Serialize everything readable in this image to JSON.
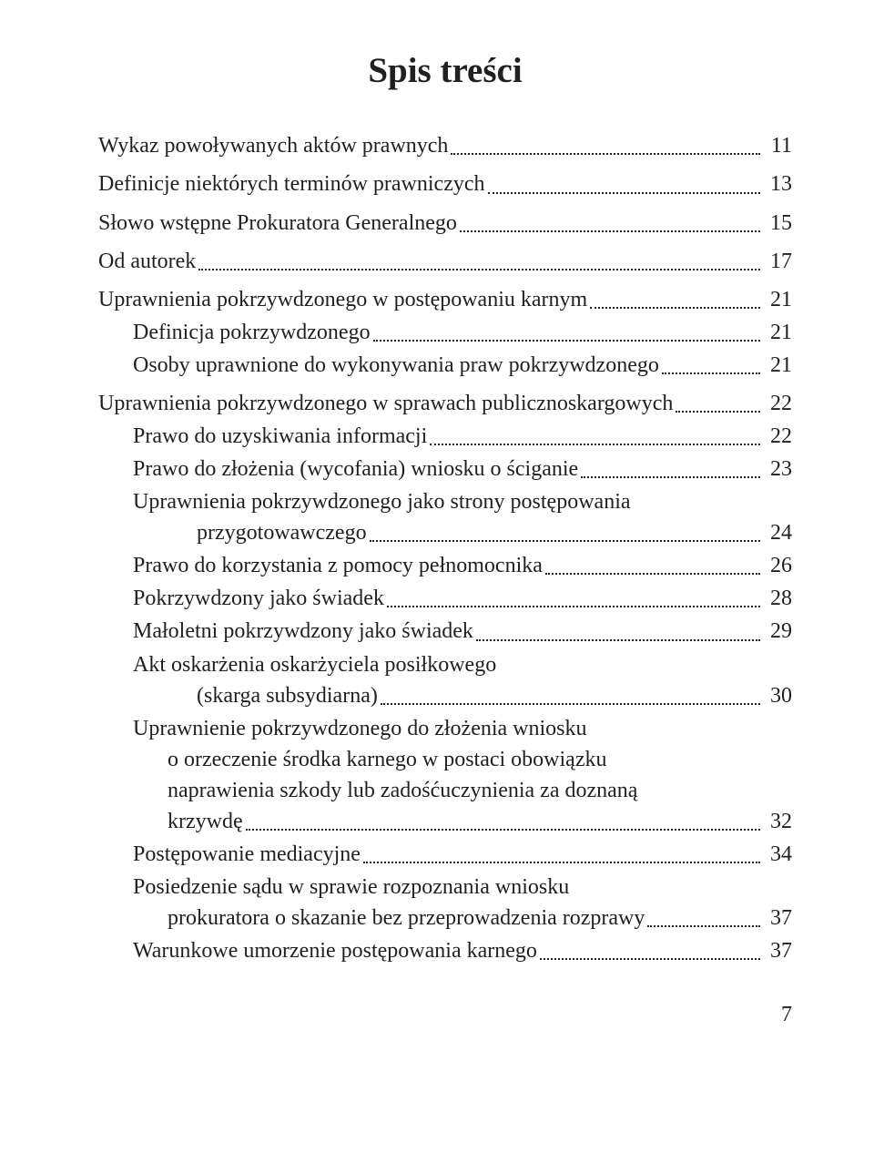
{
  "title": "Spis treści",
  "page_number": "7",
  "colors": {
    "text": "#221f1f",
    "background": "#ffffff",
    "dots": "#221f1f"
  },
  "typography": {
    "body_family": "Palatino Linotype",
    "title_family": "Georgia",
    "body_size_pt": 18,
    "title_size_pt": 29,
    "line_height": 1.42
  },
  "entries": [
    {
      "label": "Wykaz powoływanych aktów prawnych",
      "page": "11",
      "level": 0
    },
    {
      "label": "Definicje niektórych terminów prawniczych",
      "page": "13",
      "level": 0
    },
    {
      "label": "Słowo wstępne Prokuratora Generalnego",
      "page": "15",
      "level": 0
    },
    {
      "label": "Od autorek",
      "page": "17",
      "level": 0
    },
    {
      "label": "Uprawnienia pokrzywdzonego w postępowaniu karnym",
      "page": "21",
      "level": 0
    },
    {
      "label": "Definicja pokrzywdzonego",
      "page": "21",
      "level": 1
    },
    {
      "label": "Osoby uprawnione do wykonywania praw pokrzywdzonego",
      "page": "21",
      "level": 1
    },
    {
      "label": "Uprawnienia pokrzywdzonego w sprawach publicznoskargowych",
      "page": "22",
      "level": 0
    },
    {
      "label": "Prawo do uzyskiwania informacji",
      "page": "22",
      "level": 1
    },
    {
      "label": "Prawo do złożenia (wycofania) wniosku o ściganie",
      "page": "23",
      "level": 1
    },
    {
      "label_line1": "Uprawnienia pokrzywdzonego jako strony postępowania",
      "label_line2": "przygotowawczego",
      "page": "24",
      "level": 1,
      "multi": true,
      "cont_class": "cont1"
    },
    {
      "label": "Prawo do korzystania z pomocy pełnomocnika",
      "page": "26",
      "level": 1
    },
    {
      "label": "Pokrzywdzony jako świadek",
      "page": "28",
      "level": 1
    },
    {
      "label": "Małoletni pokrzywdzony jako świadek",
      "page": "29",
      "level": 1
    },
    {
      "label_line1": "Akt oskarżenia oskarżyciela posiłkowego",
      "label_line2": "(skarga subsydiarna)",
      "page": "30",
      "level": 1,
      "multi": true,
      "cont_class": "cont1"
    },
    {
      "label_line1": "Uprawnienie pokrzywdzonego do złożenia wniosku",
      "label_line2": "o orzeczenie środka karnego w postaci obowiązku",
      "label_line3": "naprawienia szkody lub zadośćuczynienia za doznaną",
      "label_line4": "krzywdę",
      "page": "32",
      "level": 1,
      "multi": true,
      "cont_class": "cont2"
    },
    {
      "label": "Postępowanie mediacyjne",
      "page": "34",
      "level": 1
    },
    {
      "label_line1": "Posiedzenie sądu w sprawie rozpoznania wniosku",
      "label_line2": "prokuratora o skazanie bez przeprowadzenia rozprawy",
      "page": "37",
      "level": 1,
      "multi": true,
      "cont_class": "cont2"
    },
    {
      "label": "Warunkowe umorzenie postępowania karnego",
      "page": "37",
      "level": 1
    }
  ]
}
